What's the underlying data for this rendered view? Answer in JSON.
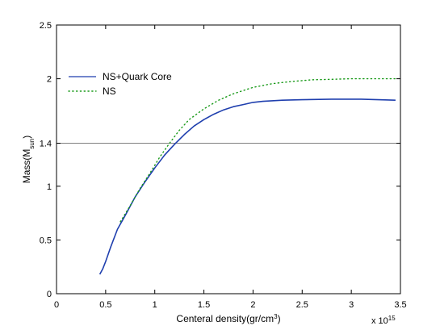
{
  "chart_data": {
    "type": "line",
    "title": "",
    "xlabel": {
      "base": "Centeral density(gr/cm",
      "sup": "3",
      "tail": ")"
    },
    "ylabel": {
      "base": "Mass(M",
      "sub": "sun",
      "tail": ")"
    },
    "x_exponent": {
      "base": "x 10",
      "sup": "15"
    },
    "xlim": [
      0,
      3.5
    ],
    "ylim": [
      0,
      2.5
    ],
    "xticks": [
      0,
      0.5,
      1,
      1.5,
      2,
      2.5,
      3,
      3.5
    ],
    "xtick_labels": [
      "0",
      "0.5",
      "1",
      "1.5",
      "2",
      "2.5",
      "3",
      "3.5"
    ],
    "yticks": [
      0,
      0.5,
      1,
      1.4,
      2,
      2.5
    ],
    "ytick_labels": [
      "0",
      "0.5",
      "1",
      "1.4",
      "2",
      "2.5"
    ],
    "grid": false,
    "legend_position": "top-left",
    "reference_line": {
      "y": 1.4,
      "color": "#808080"
    },
    "series": [
      {
        "name": "NS+Quark Core",
        "color": "#1f3fae",
        "style": "solid",
        "x": [
          0.44,
          0.47,
          0.5,
          0.55,
          0.62,
          0.7,
          0.8,
          0.9,
          1.0,
          1.1,
          1.2,
          1.3,
          1.4,
          1.5,
          1.6,
          1.7,
          1.8,
          1.9,
          2.0,
          2.1,
          2.3,
          2.5,
          2.8,
          3.1,
          3.45
        ],
        "y": [
          0.18,
          0.23,
          0.3,
          0.43,
          0.6,
          0.73,
          0.9,
          1.04,
          1.17,
          1.29,
          1.39,
          1.48,
          1.56,
          1.62,
          1.67,
          1.71,
          1.74,
          1.76,
          1.78,
          1.79,
          1.8,
          1.805,
          1.81,
          1.81,
          1.8
        ]
      },
      {
        "name": "NS",
        "color": "#1a9a1a",
        "style": "dotted",
        "x": [
          0.65,
          0.75,
          0.85,
          0.95,
          1.05,
          1.15,
          1.25,
          1.35,
          1.5,
          1.65,
          1.8,
          2.0,
          2.2,
          2.4,
          2.6,
          2.8,
          3.0,
          3.2,
          3.45
        ],
        "y": [
          0.67,
          0.82,
          0.98,
          1.12,
          1.27,
          1.4,
          1.52,
          1.62,
          1.72,
          1.8,
          1.86,
          1.92,
          1.955,
          1.975,
          1.99,
          1.995,
          2.0,
          2.0,
          2.0
        ]
      }
    ]
  }
}
